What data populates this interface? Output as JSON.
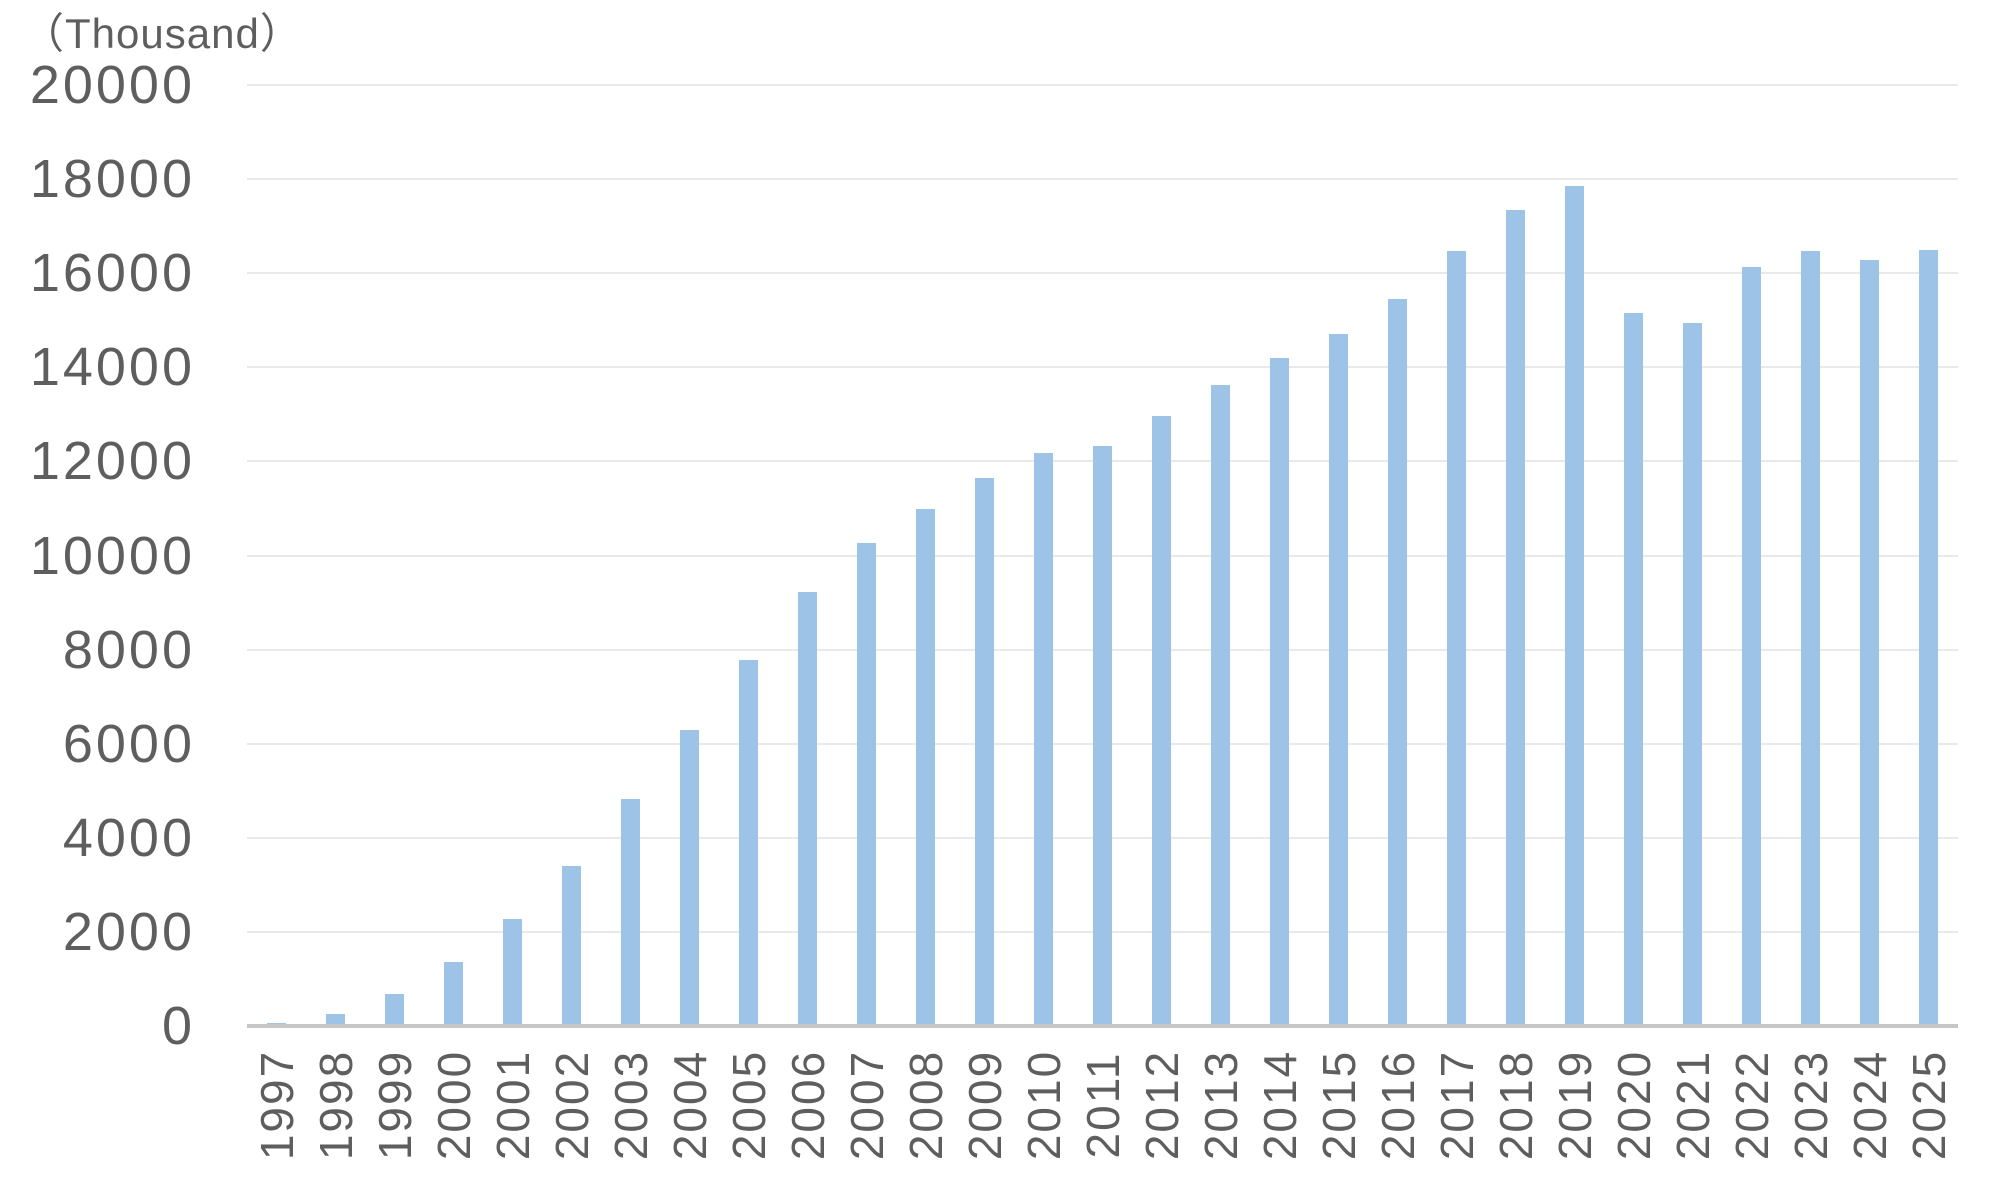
{
  "chart": {
    "unit_label": "（Thousand）"
  },
  "chart_data": {
    "type": "bar",
    "title": "",
    "unit_label": "（Thousand）",
    "xlabel": "",
    "ylabel": "（Thousand）",
    "categories": [
      "1997",
      "1998",
      "1999",
      "2000",
      "2001",
      "2002",
      "2003",
      "2004",
      "2005",
      "2006",
      "2007",
      "2008",
      "2009",
      "2010",
      "2011",
      "2012",
      "2013",
      "2014",
      "2015",
      "2016",
      "2017",
      "2018",
      "2019",
      "2020",
      "2021",
      "2022",
      "2023",
      "2024",
      "2025"
    ],
    "values": [
      60,
      260,
      670,
      1360,
      2270,
      3400,
      4820,
      6300,
      7780,
      9230,
      10260,
      10990,
      11650,
      12180,
      12330,
      12960,
      13630,
      14190,
      14700,
      15450,
      16480,
      17350,
      17850,
      15150,
      14950,
      16130,
      16480,
      16280,
      16500
    ],
    "ylim": [
      0,
      20000
    ],
    "ytick_step": 2000,
    "ytick_labels": [
      "0",
      "2000",
      "4000",
      "6000",
      "8000",
      "10000",
      "12000",
      "14000",
      "16000",
      "18000",
      "20000"
    ],
    "grid": true,
    "legend": "none",
    "colors": {
      "bar": "#9DC3E6",
      "grid": "#E9E9E9",
      "axis": "#C6C6C6",
      "text": "#5E5E5E",
      "background": "#FFFFFF"
    }
  }
}
